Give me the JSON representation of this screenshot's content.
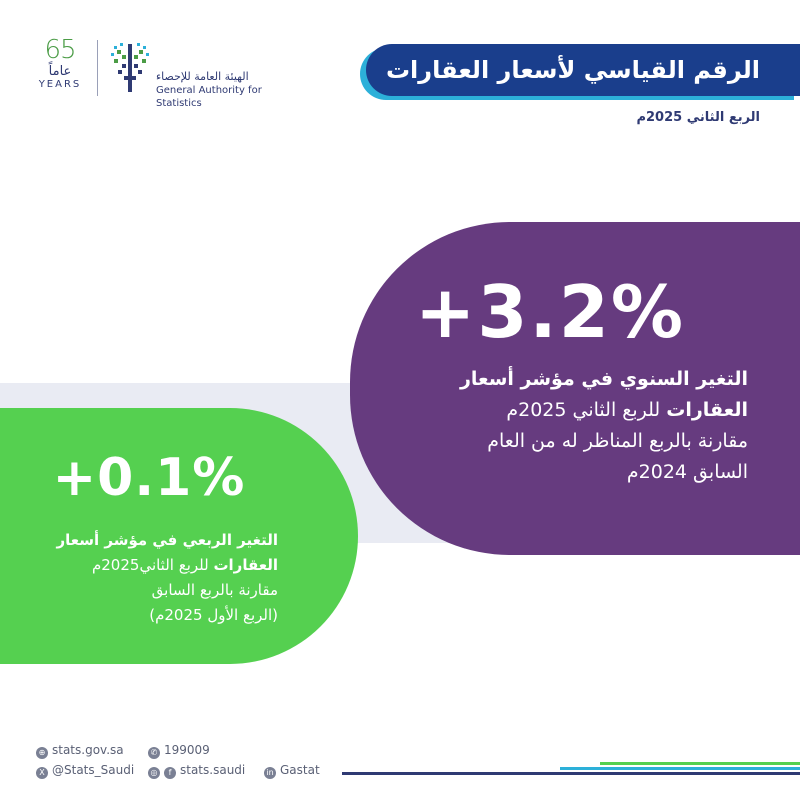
{
  "header": {
    "anniversary": {
      "number": "65",
      "arabic": "عاماً",
      "english": "YEARS"
    },
    "authority": {
      "arabic": "الهيئة العامة للإحصاء",
      "english": "General Authority for Statistics"
    },
    "title": "الرقم القياسي لأسعار العقارات",
    "period": "الربع الثاني 2025م"
  },
  "annual": {
    "value": "+3.2%",
    "lines": [
      {
        "bold": "التغير السنوي في مؤشر أسعار",
        "rest": ""
      },
      {
        "bold": "العقارات",
        "rest": " للربع الثاني 2025م"
      },
      {
        "bold": "",
        "rest": "مقارنة بالربع المناظر له من العام"
      },
      {
        "bold": "",
        "rest": "السابق 2024م"
      }
    ]
  },
  "quarterly": {
    "value": "+0.1%",
    "lines": [
      {
        "bold": "التغير الربعي في مؤشر أسعار",
        "rest": ""
      },
      {
        "bold": "العقارات",
        "rest": " للربع الثاني2025م"
      },
      {
        "bold": "",
        "rest": "مقارنة بالربع السابق"
      },
      {
        "bold": "",
        "rest": "(الربع الأول 2025م)"
      }
    ]
  },
  "footer": {
    "website": "stats.gov.sa",
    "phone": "199009",
    "x": "@Stats_Saudi",
    "social": "stats.saudi",
    "linkedin": "Gastat"
  },
  "colors": {
    "title_bar": "#1a3e8c",
    "accent_cyan": "#2cb0d9",
    "annual_card": "#663b7f",
    "quarterly_card": "#55d050",
    "band": "#e9ebf3"
  },
  "icons": {
    "website": "globe-icon",
    "phone": "phone-icon",
    "x": "x-icon",
    "instagram": "instagram-icon",
    "facebook": "facebook-icon",
    "linkedin": "linkedin-icon"
  }
}
